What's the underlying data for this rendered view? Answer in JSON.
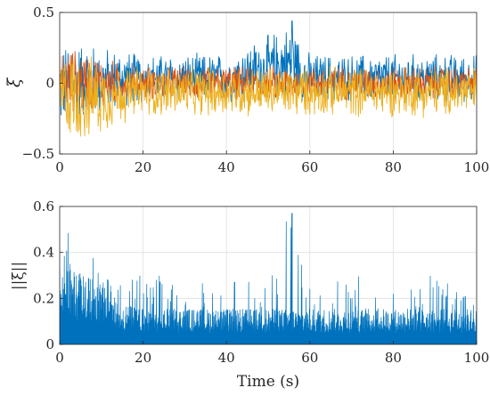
{
  "chart_data": [
    {
      "type": "line",
      "ylabel": "ξ",
      "xlabel": "",
      "xlim": [
        0,
        100
      ],
      "ylim": [
        -0.5,
        0.5
      ],
      "xticks": [
        "0",
        "20",
        "40",
        "60",
        "80",
        "100"
      ],
      "yticks": [
        "-0.5",
        "0",
        "0.5"
      ],
      "grid": true,
      "series": [
        {
          "color": "#0072BD",
          "approx_range": [
            -0.35,
            0.45
          ],
          "x": [
            0,
            2,
            5,
            10,
            15,
            20,
            40,
            55.7,
            60,
            80,
            100
          ],
          "envelope_upper": [
            0.28,
            0.3,
            0.32,
            0.28,
            0.25,
            0.22,
            0.22,
            0.44,
            0.22,
            0.22,
            0.22
          ],
          "envelope_lower": [
            -0.35,
            -0.3,
            -0.28,
            -0.25,
            -0.18,
            -0.15,
            -0.15,
            -0.15,
            -0.15,
            -0.15,
            -0.15
          ]
        },
        {
          "color": "#D95319",
          "approx_range": [
            -0.3,
            0.3
          ],
          "x": [
            0,
            2,
            5,
            10,
            15,
            20,
            40,
            60,
            80,
            100
          ],
          "envelope_upper": [
            0.25,
            0.27,
            0.26,
            0.2,
            0.15,
            0.13,
            0.13,
            0.13,
            0.13,
            0.13
          ],
          "envelope_lower": [
            -0.3,
            -0.28,
            -0.25,
            -0.2,
            -0.14,
            -0.13,
            -0.13,
            -0.13,
            -0.13,
            -0.13
          ]
        },
        {
          "color": "#EDB120",
          "approx_range": [
            -0.45,
            0.3
          ],
          "x": [
            0,
            2,
            5,
            10,
            15,
            20,
            40,
            60,
            80,
            100
          ],
          "envelope_upper": [
            0.22,
            0.25,
            0.24,
            0.18,
            0.14,
            0.13,
            0.13,
            0.13,
            0.13,
            0.13
          ],
          "envelope_lower": [
            -0.4,
            -0.42,
            -0.45,
            -0.38,
            -0.3,
            -0.25,
            -0.25,
            -0.25,
            -0.25,
            -0.25
          ]
        }
      ]
    },
    {
      "type": "area",
      "ylabel": "||ξ||",
      "xlabel": "Time (s)",
      "xlim": [
        0,
        100
      ],
      "ylim": [
        0,
        0.6
      ],
      "xticks": [
        "0",
        "20",
        "40",
        "60",
        "80",
        "100"
      ],
      "yticks": [
        "0",
        "0.2",
        "0.4",
        "0.6"
      ],
      "grid": true,
      "series": [
        {
          "color": "#0072BD",
          "x": [
            0,
            1,
            3,
            5,
            8,
            10,
            12,
            15,
            20,
            40,
            55.7,
            60,
            80,
            100
          ],
          "envelope_upper": [
            0.5,
            0.55,
            0.5,
            0.45,
            0.42,
            0.38,
            0.35,
            0.3,
            0.3,
            0.3,
            0.57,
            0.3,
            0.3,
            0.3
          ],
          "typical_level": [
            0.25,
            0.3,
            0.3,
            0.28,
            0.26,
            0.24,
            0.2,
            0.16,
            0.14,
            0.14,
            0.14,
            0.14,
            0.14,
            0.14
          ]
        }
      ]
    }
  ]
}
